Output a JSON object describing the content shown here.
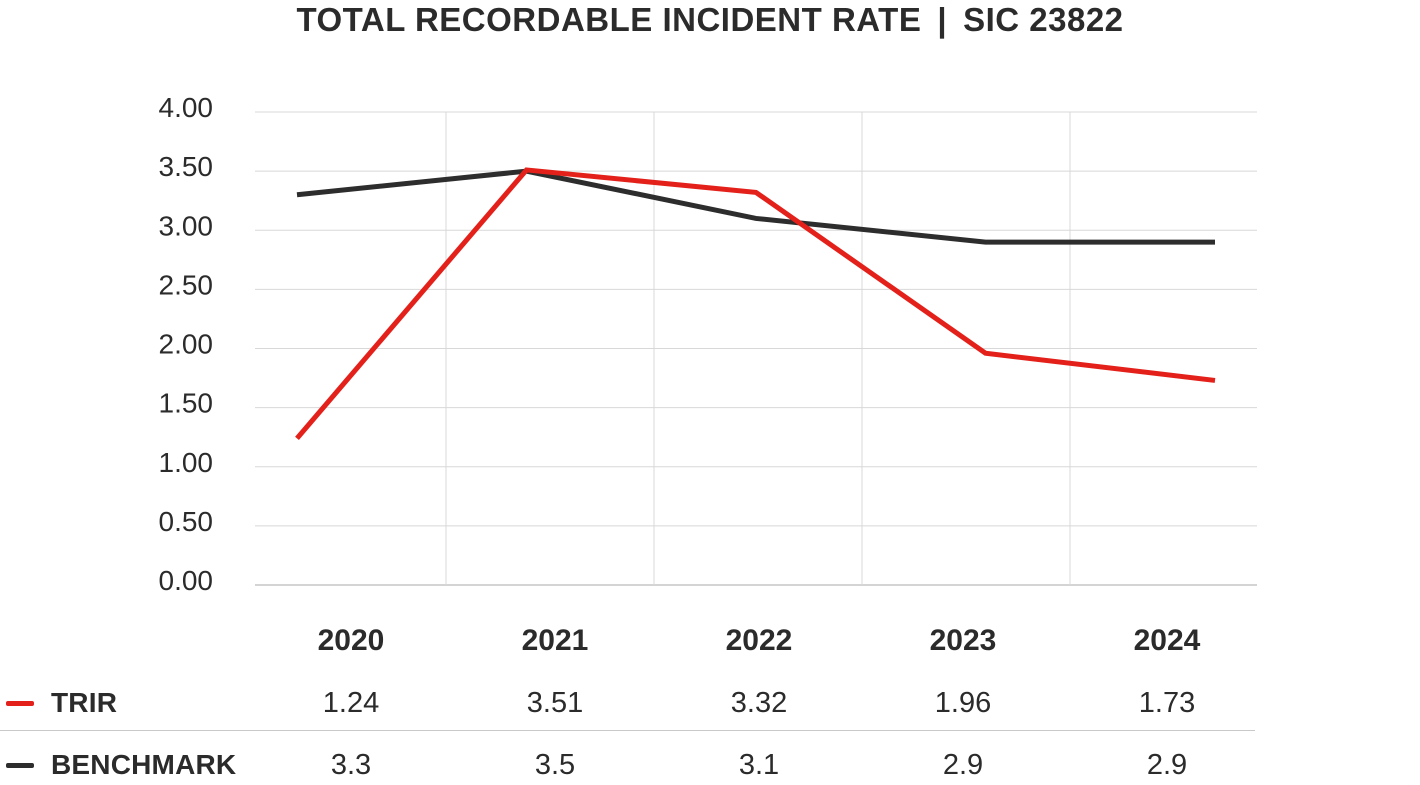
{
  "title": {
    "main": "TOTAL RECORDABLE INCIDENT RATE",
    "separator": "|",
    "code": "SIC 23822"
  },
  "colors": {
    "trir_red": "#e3211a",
    "benchmark_black": "#2d2d2d",
    "grid": "#d8d8d8",
    "baseline": "#c6c6c6",
    "text": "#2b2b2b",
    "divider": "#c9c9c9"
  },
  "chart_data": {
    "type": "line",
    "title": "TOTAL RECORDABLE INCIDENT RATE | SIC 23822",
    "categories": [
      "2020",
      "2021",
      "2022",
      "2023",
      "2024"
    ],
    "series": [
      {
        "name": "TRIR",
        "color": "#e3211a",
        "values": [
          1.24,
          3.51,
          3.32,
          1.96,
          1.73
        ],
        "display_values": [
          "1.24",
          "3.51",
          "3.32",
          "1.96",
          "1.73"
        ]
      },
      {
        "name": "BENCHMARK",
        "color": "#2d2d2d",
        "values": [
          3.3,
          3.5,
          3.1,
          2.9,
          2.9
        ],
        "display_values": [
          "3.3",
          "3.5",
          "3.1",
          "2.9",
          "2.9"
        ]
      }
    ],
    "y_axis": {
      "min": 0,
      "max": 4,
      "step": 0.5,
      "tick_labels": [
        "4.00",
        "3.50",
        "3.00",
        "2.50",
        "2.00",
        "1.50",
        "1.00",
        "0.50",
        "0.00"
      ]
    },
    "grid": true,
    "legend_position": "bottom-left"
  }
}
